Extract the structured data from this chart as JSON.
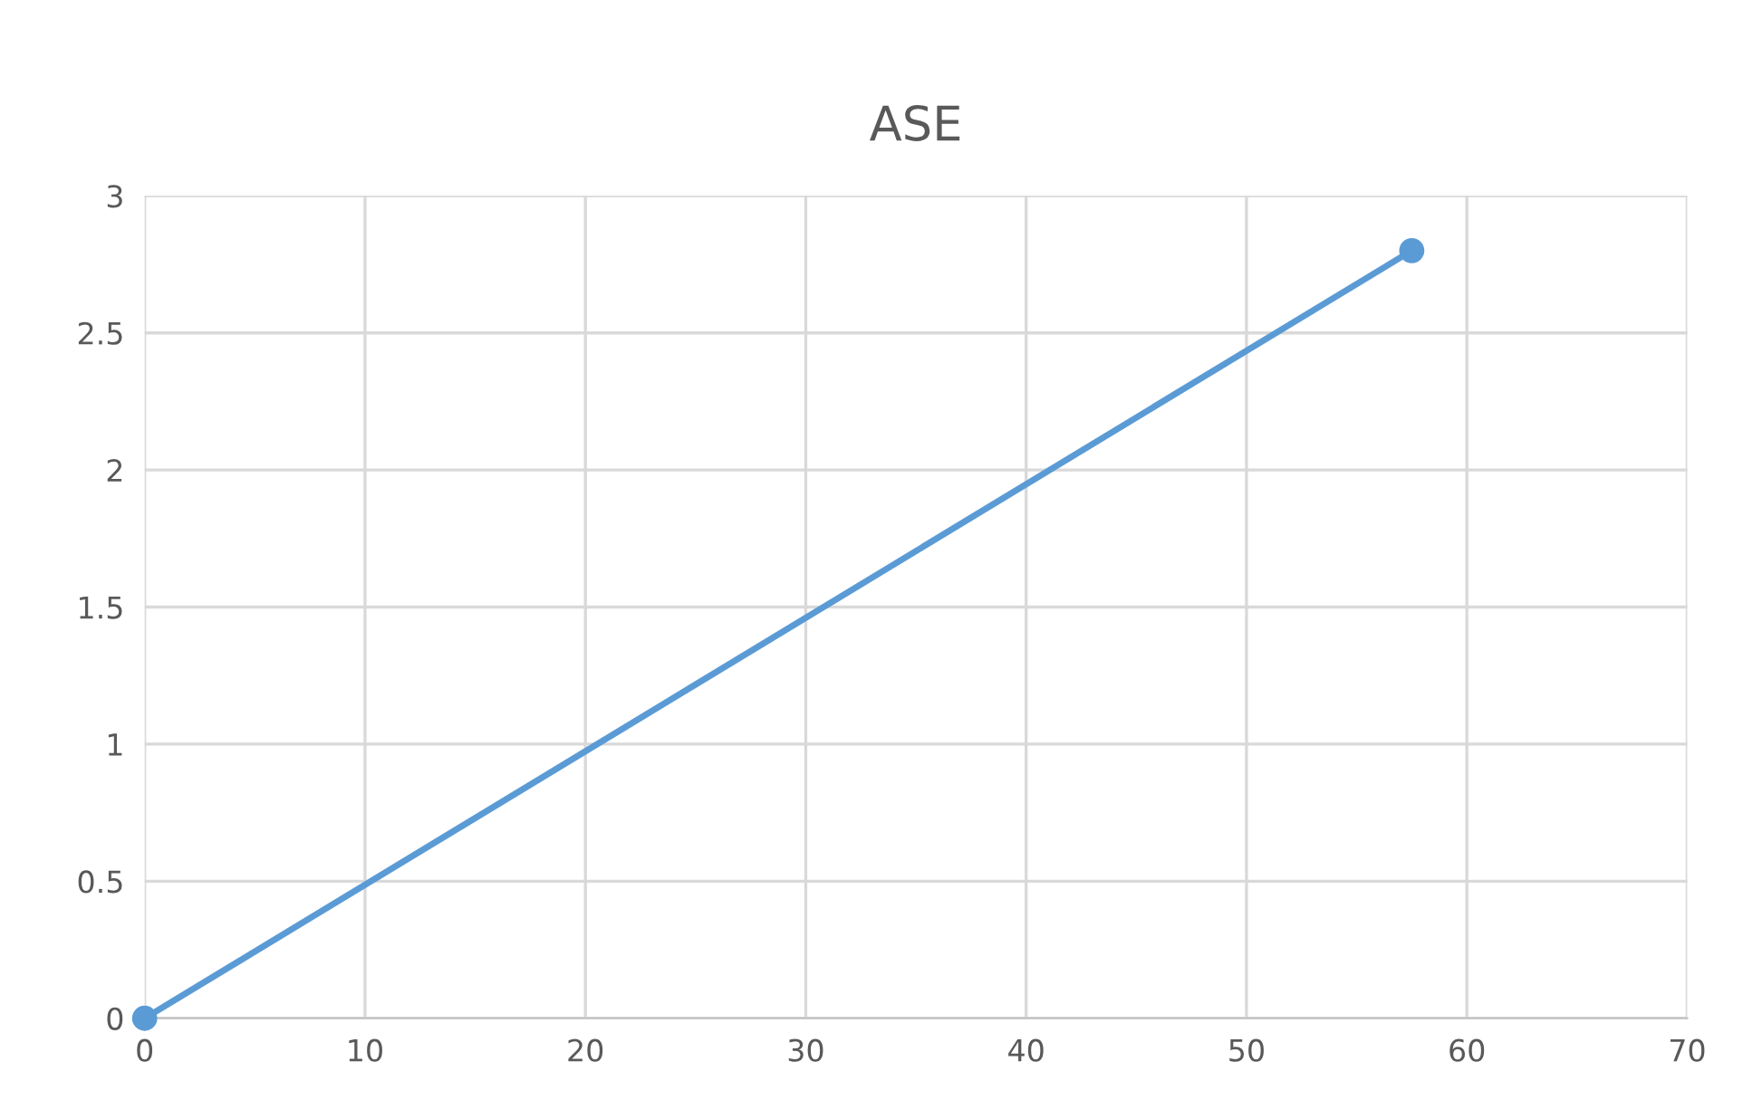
{
  "chart_data": {
    "type": "line",
    "title": "ASE",
    "series": [
      {
        "color": "#5b9bd5",
        "x": [
          0,
          57.5
        ],
        "values": [
          0,
          2.8
        ]
      }
    ],
    "marker": "circle",
    "line_style": "solid",
    "xlim": [
      0,
      70
    ],
    "xticks": [
      0,
      10,
      20,
      30,
      40,
      50,
      60,
      70
    ],
    "ylim": [
      0,
      3
    ],
    "yticks": [
      0,
      0.5,
      1,
      1.5,
      2,
      2.5,
      3
    ],
    "grid": true
  }
}
